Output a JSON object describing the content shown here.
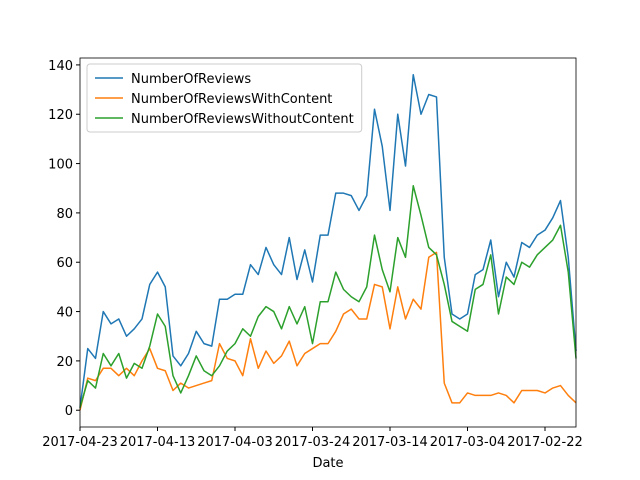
{
  "chart_data": {
    "type": "line",
    "x_label": "Date",
    "categories": [
      "2017-04-23",
      null,
      null,
      null,
      null,
      null,
      null,
      null,
      null,
      null,
      "2017-04-13",
      null,
      null,
      null,
      null,
      null,
      null,
      null,
      null,
      null,
      "2017-04-03",
      null,
      null,
      null,
      null,
      null,
      null,
      null,
      null,
      null,
      "2017-03-24",
      null,
      null,
      null,
      null,
      null,
      null,
      null,
      null,
      null,
      "2017-03-14",
      null,
      null,
      null,
      null,
      null,
      null,
      null,
      null,
      null,
      "2017-03-04",
      null,
      null,
      null,
      null,
      null,
      null,
      null,
      null,
      null,
      "2017-02-22",
      null,
      null,
      null,
      null
    ],
    "series": [
      {
        "name": "NumberOfReviews",
        "color": "#1f77b4",
        "values": [
          1,
          25,
          21,
          40,
          35,
          37,
          30,
          33,
          37,
          51,
          56,
          50,
          22,
          18,
          23,
          32,
          27,
          26,
          45,
          45,
          47,
          47,
          59,
          55,
          66,
          59,
          55,
          70,
          53,
          65,
          52,
          71,
          71,
          88,
          88,
          87,
          81,
          87,
          122,
          107,
          81,
          120,
          99,
          136,
          120,
          128,
          127,
          62,
          39,
          37,
          39,
          55,
          57,
          69,
          46,
          60,
          54,
          68,
          66,
          71,
          73,
          78,
          85,
          62,
          24
        ]
      },
      {
        "name": "NumberOfReviewsWithContent",
        "color": "#ff7f0e",
        "values": [
          0,
          13,
          12,
          17,
          17,
          14,
          17,
          14,
          20,
          25,
          17,
          16,
          8,
          11,
          9,
          10,
          11,
          12,
          27,
          21,
          20,
          14,
          29,
          17,
          24,
          19,
          22,
          28,
          18,
          23,
          25,
          27,
          27,
          32,
          39,
          41,
          37,
          37,
          51,
          50,
          33,
          50,
          37,
          45,
          41,
          62,
          64,
          11,
          3,
          3,
          7,
          6,
          6,
          6,
          7,
          6,
          3,
          8,
          8,
          8,
          7,
          9,
          10,
          6,
          3
        ]
      },
      {
        "name": "NumberOfReviewsWithoutContent",
        "color": "#2ca02c",
        "values": [
          1,
          12,
          9,
          23,
          18,
          23,
          13,
          19,
          17,
          26,
          39,
          34,
          14,
          7,
          14,
          22,
          16,
          14,
          18,
          24,
          27,
          33,
          30,
          38,
          42,
          40,
          33,
          42,
          35,
          42,
          27,
          44,
          44,
          56,
          49,
          46,
          44,
          50,
          71,
          57,
          48,
          70,
          62,
          91,
          79,
          66,
          63,
          51,
          36,
          34,
          32,
          49,
          51,
          63,
          39,
          54,
          51,
          60,
          58,
          63,
          66,
          69,
          75,
          56,
          21
        ]
      }
    ],
    "ylim": [
      -6.8,
      142.8
    ],
    "yticks": [
      0,
      20,
      40,
      60,
      80,
      100,
      120,
      140
    ],
    "legend": "upper left"
  }
}
